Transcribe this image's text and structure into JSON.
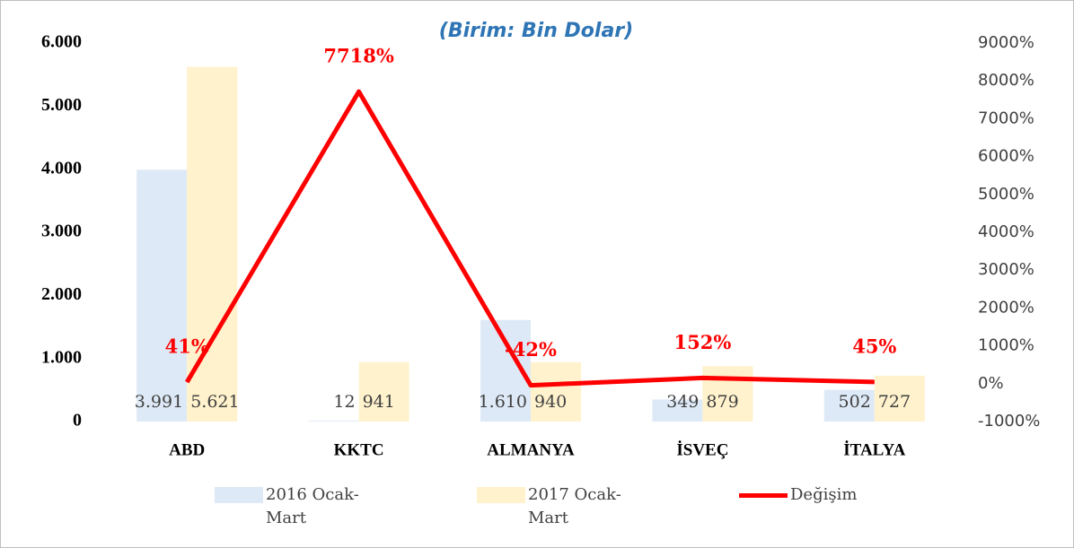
{
  "chart_data": {
    "type": "bar-line",
    "title": "(Birim: Bin Dolar)",
    "categories": [
      "ABD",
      "KKTC",
      "ALMANYA",
      "İSVEÇ",
      "İTALYA"
    ],
    "series": [
      {
        "name": "2016 Ocak-Mart",
        "type": "bar",
        "color": "#dde9f6",
        "values": [
          3991,
          12,
          1610,
          349,
          502
        ],
        "value_labels": [
          "3.991",
          "12",
          "1.610",
          "349",
          "502"
        ]
      },
      {
        "name": "2017 Ocak-Mart",
        "type": "bar",
        "color": "#fff2cc",
        "values": [
          5621,
          941,
          940,
          879,
          727
        ],
        "value_labels": [
          "5.621",
          "941",
          "940",
          "879",
          "727"
        ]
      },
      {
        "name": "Değişim",
        "type": "line",
        "axis": "y2",
        "color": "#ff0000",
        "values": [
          41,
          7718,
          -42,
          152,
          45
        ],
        "value_labels": [
          "41%",
          "7718%",
          "-42%",
          "152%",
          "45%"
        ]
      }
    ],
    "ylim": [
      0,
      6000
    ],
    "yticks": [
      0,
      {
        "value": 1000,
        "label": "1.000"
      },
      {
        "value": 2000,
        "label": "2.000"
      },
      {
        "value": 3000,
        "label": "3.000"
      },
      {
        "value": 4000,
        "label": "4.000"
      },
      {
        "value": 5000,
        "label": "5.000"
      },
      {
        "value": 6000,
        "label": "6.000"
      }
    ],
    "y2lim": [
      -1000,
      9000
    ],
    "y2ticks": [
      {
        "value": -1000,
        "label": "-1000%"
      },
      {
        "value": 0,
        "label": "0%"
      },
      {
        "value": 1000,
        "label": "1000%"
      },
      {
        "value": 2000,
        "label": "2000%"
      },
      {
        "value": 3000,
        "label": "3000%"
      },
      {
        "value": 4000,
        "label": "4000%"
      },
      {
        "value": 5000,
        "label": "5000%"
      },
      {
        "value": 6000,
        "label": "6000%"
      },
      {
        "value": 7000,
        "label": "7000%"
      },
      {
        "value": 8000,
        "label": "8000%"
      },
      {
        "value": 9000,
        "label": "9000%"
      }
    ]
  }
}
